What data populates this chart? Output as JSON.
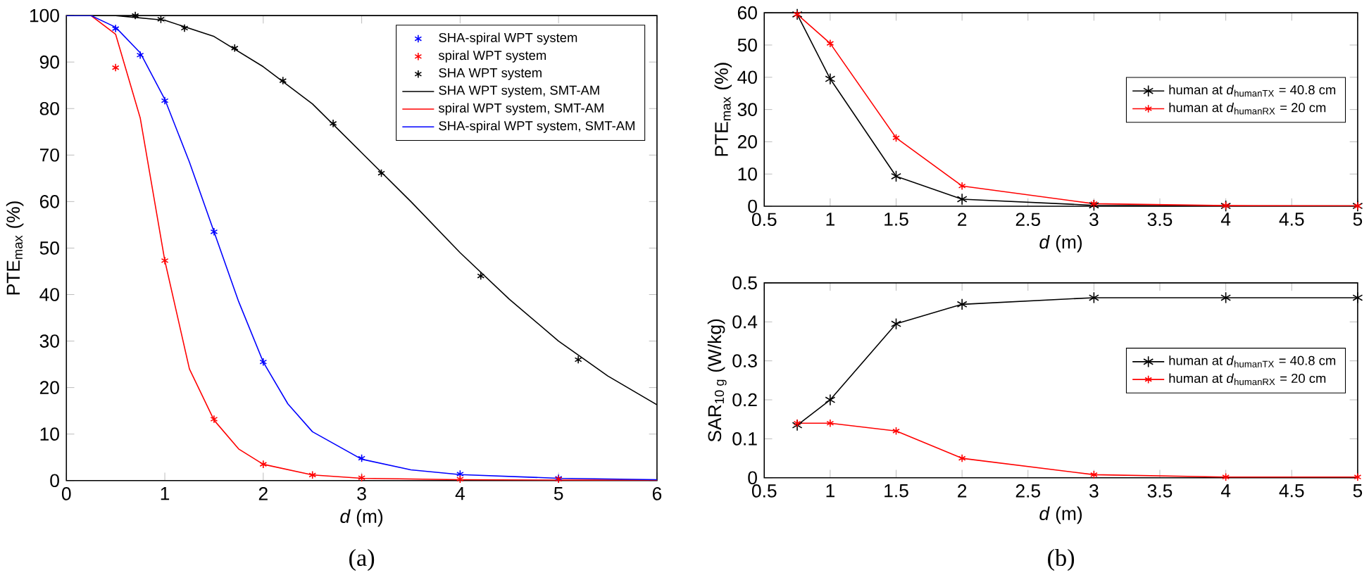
{
  "chart_data": [
    {
      "type": "line",
      "xlabel": "*d* (m)",
      "ylabel": "PTE$_{max}$ (%)",
      "xlim": [
        0,
        6
      ],
      "ylim": [
        0,
        100
      ],
      "xticks": [
        0,
        1,
        2,
        3,
        4,
        5,
        6
      ],
      "yticks": [
        0,
        10,
        20,
        30,
        40,
        50,
        60,
        70,
        80,
        90,
        100
      ],
      "legend": "top right",
      "annotations": [
        "(a)"
      ],
      "series": [
        {
          "name": "SHA-spiral WPT system",
          "type": "scatter",
          "marker": "cross",
          "color": "#0000ff",
          "x": [
            0.5,
            0.75,
            1,
            1.5,
            2,
            3,
            4,
            5
          ],
          "values": [
            97.2,
            91.5,
            81.7,
            53.5,
            25.5,
            4.8,
            1.4,
            0.5
          ]
        },
        {
          "name": "spiral WPT system",
          "type": "scatter",
          "marker": "cross",
          "color": "#ff0000",
          "x": [
            0.5,
            1,
            1.5,
            2,
            2.5,
            3,
            4,
            5
          ],
          "values": [
            88.8,
            47.3,
            13.2,
            3.5,
            1.2,
            0.6,
            0.3,
            0.3
          ]
        },
        {
          "name": "SHA WPT system",
          "type": "scatter",
          "marker": "cross",
          "color": "#000000",
          "x": [
            0.7,
            0.96,
            1.2,
            1.71,
            2.2,
            2.71,
            3.2,
            4.21,
            5.2
          ],
          "values": [
            100,
            99.2,
            97.3,
            93,
            86,
            76.8,
            66.1,
            44,
            26
          ]
        },
        {
          "name": "SHA WPT system, SMT-AM",
          "type": "line",
          "color": "#000000",
          "x": [
            0.5,
            1,
            1.5,
            2,
            2.5,
            3,
            3.5,
            4,
            4.5,
            5,
            5.5,
            6
          ],
          "values": [
            100,
            99,
            95.5,
            89,
            81,
            70.5,
            60,
            49,
            39,
            30,
            22.5,
            16.3
          ]
        },
        {
          "name": "spiral WPT system, SMT-AM",
          "type": "line",
          "color": "#ff0000",
          "x": [
            0,
            0.25,
            0.5,
            0.75,
            1,
            1.25,
            1.5,
            1.75,
            2,
            2.5,
            3,
            4,
            5,
            6
          ],
          "values": [
            100,
            100,
            96,
            78,
            47.3,
            24,
            13,
            6.8,
            3.5,
            1.2,
            0.5,
            0.2,
            0.1,
            0.1
          ]
        },
        {
          "name": "SHA-spiral WPT system, SMT-AM",
          "type": "line",
          "color": "#0000ff",
          "x": [
            0,
            0.25,
            0.5,
            0.75,
            1,
            1.25,
            1.5,
            1.75,
            2,
            2.25,
            2.5,
            3,
            3.5,
            4,
            5,
            6
          ],
          "values": [
            100,
            100,
            97.5,
            92,
            82,
            68.5,
            53.5,
            38.5,
            25.5,
            16.5,
            10.5,
            4.6,
            2.3,
            1.3,
            0.5,
            0.2
          ]
        }
      ]
    },
    {
      "type": "line",
      "xlabel": "*d* (m)",
      "ylabel": "PTE$_{max}$ (%)",
      "xlim": [
        0.5,
        5
      ],
      "ylim": [
        0,
        60
      ],
      "xticks": [
        0.5,
        1,
        1.5,
        2,
        2.5,
        3,
        3.5,
        4,
        4.5,
        5
      ],
      "yticks": [
        0,
        10,
        20,
        30,
        40,
        50,
        60
      ],
      "legend": "right",
      "marker": "cross",
      "x": [
        0.75,
        1,
        1.5,
        2,
        3,
        4,
        5
      ],
      "series": [
        {
          "name": "human at *d*$_{humanTX}$ = 40.8 cm",
          "color": "#000000",
          "values": [
            59.5,
            39.5,
            9.3,
            2.2,
            0.3,
            0.1,
            0.1
          ]
        },
        {
          "name": "human at *d*$_{humanRX}$ = 20 cm",
          "color": "#ff0000",
          "values": [
            59.5,
            50.5,
            21.2,
            6.3,
            0.8,
            0.2,
            0.1
          ]
        }
      ]
    },
    {
      "type": "line",
      "xlabel": "*d* (m)",
      "ylabel": "SAR$_{10 g}$ (W/kg)",
      "xlim": [
        0.5,
        5
      ],
      "ylim": [
        0,
        0.5
      ],
      "xticks": [
        0.5,
        1,
        1.5,
        2,
        2.5,
        3,
        3.5,
        4,
        4.5,
        5
      ],
      "yticks": [
        0,
        0.1,
        0.2,
        0.3,
        0.4,
        0.5
      ],
      "legend": "right",
      "marker": "cross",
      "annotations": [
        "(b)"
      ],
      "x": [
        0.75,
        1,
        1.5,
        2,
        3,
        4,
        5
      ],
      "series": [
        {
          "name": "human at *d*$_{humanTX}$ = 40.8 cm",
          "color": "#000000",
          "values": [
            0.135,
            0.2,
            0.395,
            0.445,
            0.462,
            0.462,
            0.462
          ]
        },
        {
          "name": "human at *d*$_{humanRX}$ = 20 cm",
          "color": "#ff0000",
          "values": [
            0.14,
            0.14,
            0.12,
            0.05,
            0.008,
            0.002,
            0.002
          ]
        }
      ]
    }
  ]
}
